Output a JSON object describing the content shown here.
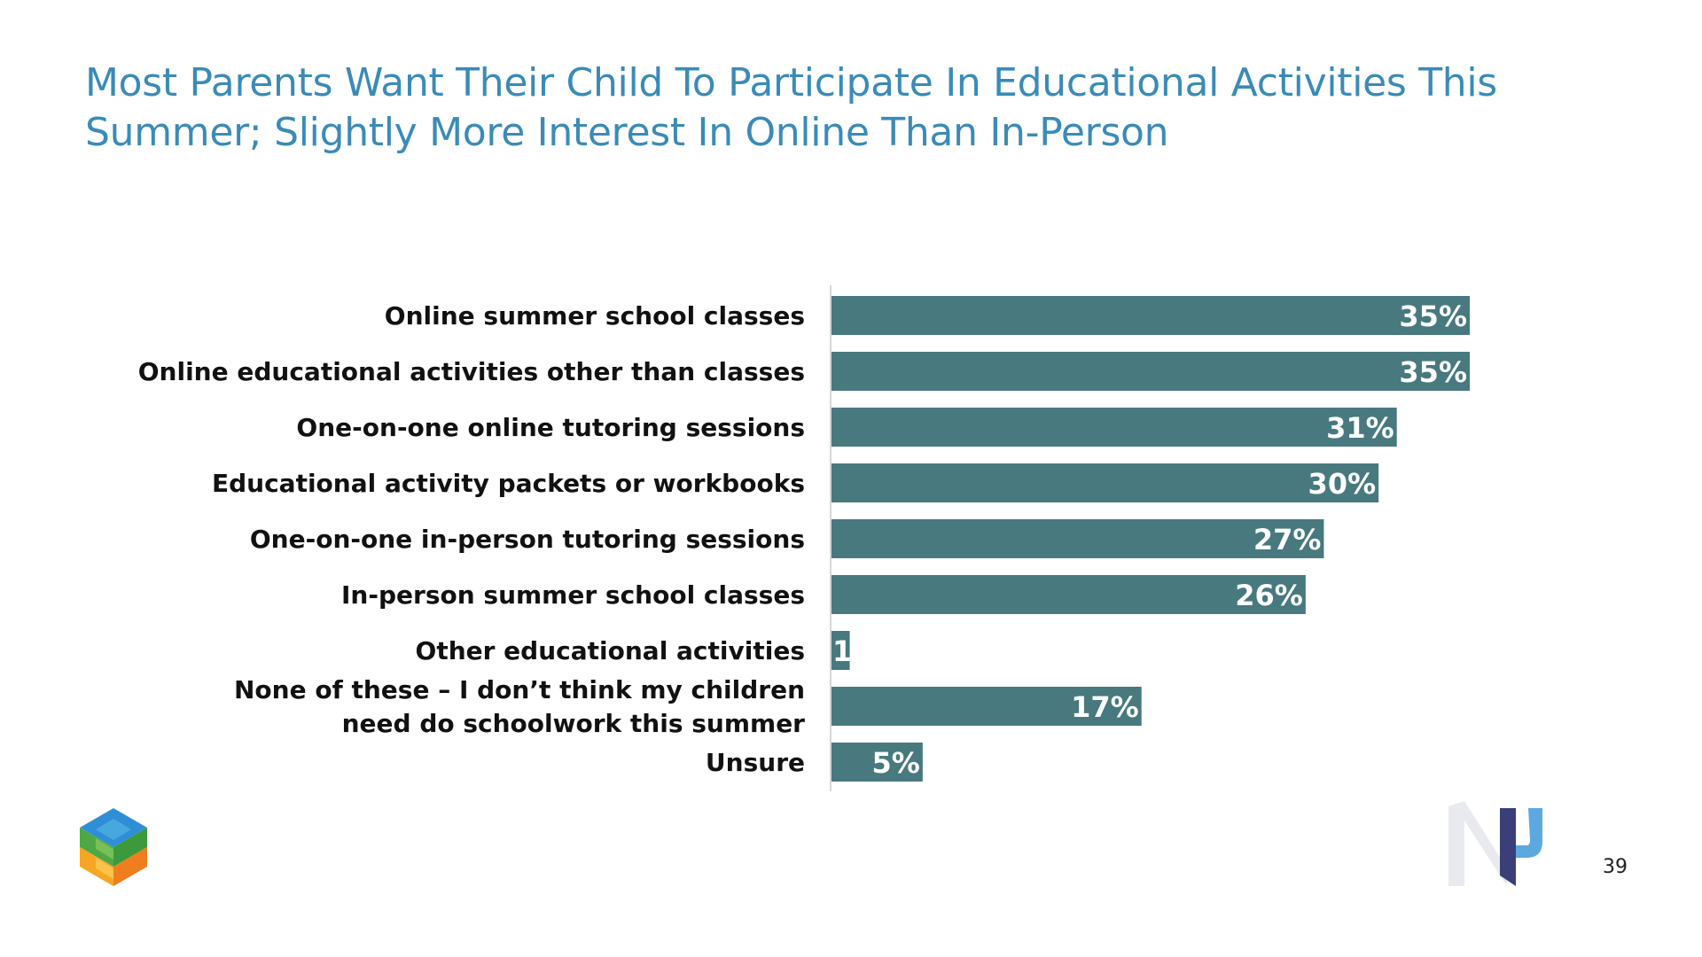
{
  "slide": {
    "title": "Most Parents Want Their Child To Participate In Educational Activities This Summer; Slightly More Interest In Online Than In-Person",
    "page_number": "39",
    "bar_color": "#47797f",
    "title_color": "#3a8bb8"
  },
  "chart_data": {
    "type": "bar",
    "orientation": "horizontal",
    "categories": [
      [
        "Online summer school classes"
      ],
      [
        "Online educational activities other than classes"
      ],
      [
        "One-on-one online tutoring sessions"
      ],
      [
        "Educational activity packets or workbooks"
      ],
      [
        "One-on-one in-person tutoring sessions"
      ],
      [
        "In-person summer school classes"
      ],
      [
        "Other educational activities"
      ],
      [
        "None of these – I don’t think my children",
        "need do schoolwork this summer"
      ],
      [
        "Unsure"
      ]
    ],
    "values": [
      35,
      35,
      31,
      30,
      27,
      26,
      1,
      17,
      5
    ],
    "value_labels": [
      "35%",
      "35%",
      "31%",
      "30%",
      "27%",
      "26%",
      "1%",
      "17%",
      "5%"
    ],
    "xlim": [
      0,
      35
    ],
    "grid": false,
    "legend": "none"
  },
  "logos": {
    "left": "cube-logo-icon",
    "right": "np-logo-icon"
  }
}
